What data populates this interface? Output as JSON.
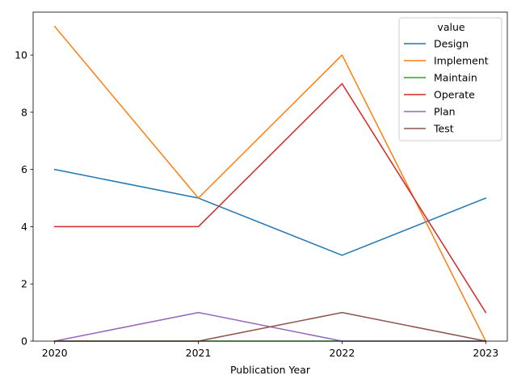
{
  "chart_data": {
    "type": "line",
    "x": [
      2020,
      2021,
      2022,
      2023
    ],
    "xlabel": "Publication Year",
    "ylabel": "",
    "ylim": [
      0,
      11.5
    ],
    "yticks": [
      0,
      2,
      4,
      6,
      8,
      10
    ],
    "grid": false,
    "legend": {
      "title": "value",
      "placement": "upper-right"
    },
    "series": [
      {
        "name": "Design",
        "color": "#1f77b4",
        "values": [
          6,
          5,
          3,
          5
        ]
      },
      {
        "name": "Implement",
        "color": "#ff7f0e",
        "values": [
          11,
          5,
          10,
          0
        ]
      },
      {
        "name": "Maintain",
        "color": "#2ca02c",
        "values": [
          0,
          0,
          0,
          0
        ]
      },
      {
        "name": "Operate",
        "color": "#d62728",
        "values": [
          4,
          4,
          9,
          1
        ]
      },
      {
        "name": "Plan",
        "color": "#9467bd",
        "values": [
          0,
          1,
          0,
          0
        ]
      },
      {
        "name": "Test",
        "color": "#8c564b",
        "values": [
          0,
          0,
          1,
          0
        ]
      }
    ]
  }
}
